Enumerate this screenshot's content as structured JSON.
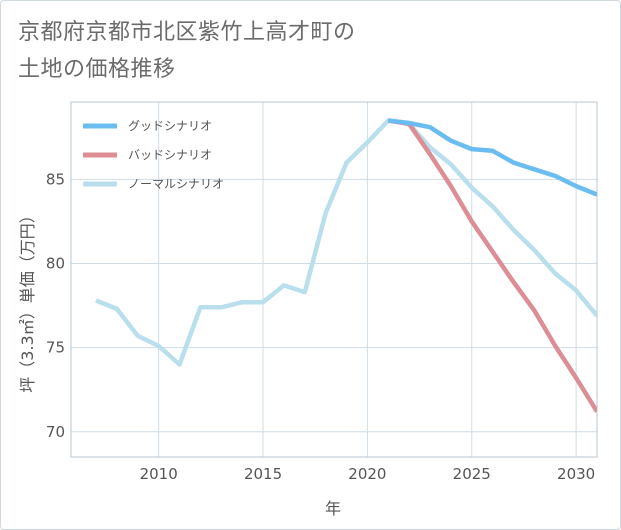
{
  "chart_data": {
    "type": "line",
    "title": "京都府京都市北区紫竹上高才町の\n土地の価格推移",
    "xlabel": "年",
    "ylabel": "坪（3.3㎡）単価（万円）",
    "xlim": [
      2005.8,
      2031.0
    ],
    "ylim": [
      68.5,
      89.6
    ],
    "xticks": [
      2010,
      2015,
      2020,
      2025,
      2030
    ],
    "yticks": [
      70,
      75,
      80,
      85
    ],
    "xtick_labels": [
      "2010",
      "2015",
      "2020",
      "2025",
      "2030"
    ],
    "ytick_labels": [
      "70",
      "75",
      "80",
      "85"
    ],
    "legend_position": "top-left",
    "series": [
      {
        "name": "グッドシナリオ",
        "color": "#6bbcf0",
        "x": [
          2021,
          2022,
          2023,
          2024,
          2025,
          2026,
          2027,
          2028,
          2029,
          2030,
          2031
        ],
        "values": [
          88.5,
          88.35,
          88.1,
          87.3,
          86.8,
          86.7,
          86.0,
          85.6,
          85.2,
          84.6,
          84.1
        ]
      },
      {
        "name": "バッドシナリオ",
        "color": "#dc8e94",
        "x": [
          2021,
          2022,
          2023,
          2024,
          2025,
          2026,
          2027,
          2028,
          2029,
          2030,
          2031
        ],
        "values": [
          88.5,
          88.3,
          86.5,
          84.6,
          82.5,
          80.7,
          78.9,
          77.2,
          75.1,
          73.2,
          71.2
        ]
      },
      {
        "name": "ノーマルシナリオ",
        "color": "#b9dfec",
        "x": [
          2007,
          2008,
          2009,
          2010,
          2011,
          2012,
          2013,
          2014,
          2015,
          2016,
          2017,
          2018,
          2019,
          2020,
          2021,
          2022,
          2023,
          2024,
          2025,
          2026,
          2027,
          2028,
          2029,
          2030,
          2031
        ],
        "values": [
          77.8,
          77.3,
          75.7,
          75.1,
          74.0,
          77.4,
          77.4,
          77.7,
          77.7,
          78.7,
          78.3,
          83.0,
          86.0,
          87.2,
          88.5,
          88.3,
          86.9,
          85.9,
          84.5,
          83.4,
          82.0,
          80.8,
          79.4,
          78.4,
          76.9
        ]
      }
    ]
  }
}
